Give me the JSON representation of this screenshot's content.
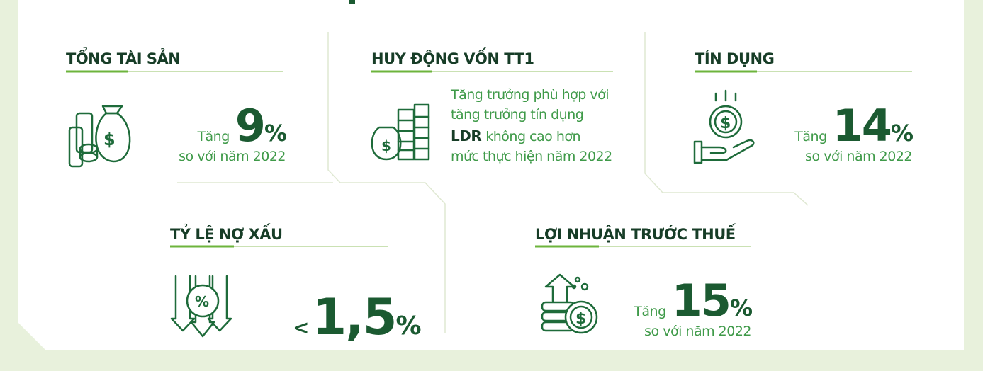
{
  "cards": [
    {
      "title": "TỔNG TÀI SẢN",
      "lead": "Tăng",
      "value": "9",
      "unit": "%",
      "note": "so với năm 2022"
    },
    {
      "title": "HUY ĐỘNG VỐN TT1",
      "lines": [
        "Tăng trưởng phù hợp với",
        "tăng trưởng tín dụng"
      ],
      "bold": "LDR",
      "rest": [
        "không cao hơn",
        "mức thực hiện năm 2022"
      ]
    },
    {
      "title": "TÍN DỤNG",
      "lead": "Tăng",
      "value": "14",
      "unit": "%",
      "note": "so với năm 2022"
    },
    {
      "title": "TỶ LỆ NỢ XẤU",
      "lead": "<",
      "value": "1,5",
      "unit": "%"
    },
    {
      "title": "LỢI NHUẬN TRƯỚC THUẾ",
      "lead": "Tăng",
      "value": "15",
      "unit": "%",
      "note": "so với năm 2022"
    }
  ]
}
